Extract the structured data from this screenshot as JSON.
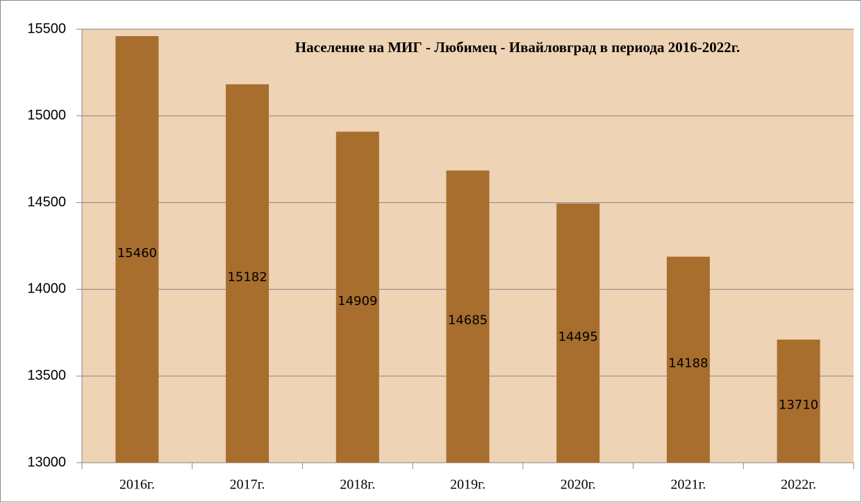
{
  "chart_data": {
    "type": "bar",
    "title": "Население на МИГ - Любимец - Ивайловград в периода 2016-2022г.",
    "categories": [
      "2016г.",
      "2017г.",
      "2018г.",
      "2019г.",
      "2020г.",
      "2021г.",
      "2022г."
    ],
    "values": [
      15460,
      15182,
      14909,
      14685,
      14495,
      14188,
      13710
    ],
    "color": "#a86e2e",
    "ylim": [
      13000,
      15500
    ],
    "yticks": [
      13000,
      13500,
      14000,
      14500,
      15000,
      15500
    ],
    "grid": true
  }
}
